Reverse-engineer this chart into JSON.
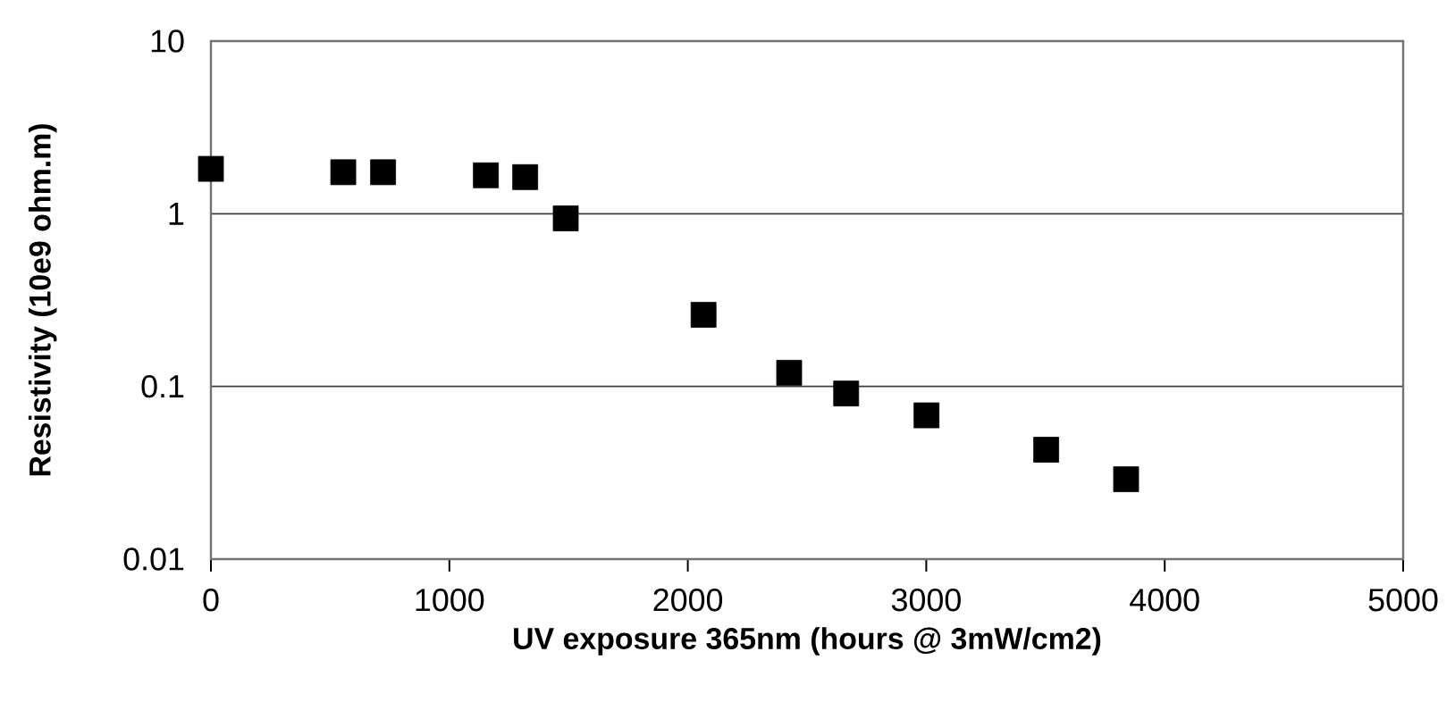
{
  "chart_data": {
    "type": "scatter",
    "xlabel": "UV exposure 365nm (hours @ 3mW/cm2)",
    "ylabel": "Resistivity (10e9 ohm.m)",
    "x": [
      0,
      555,
      722,
      1153,
      1318,
      1488,
      2066,
      2425,
      2664,
      3001,
      3503,
      3838
    ],
    "series": [
      {
        "color": "#000000",
        "values": [
          1.82,
          1.74,
          1.74,
          1.67,
          1.63,
          0.94,
          0.26,
          0.12,
          0.091,
          0.068,
          0.043,
          0.029
        ]
      }
    ],
    "xlim": [
      0,
      5000
    ],
    "xticks": [
      0,
      1000,
      2000,
      3000,
      4000,
      5000
    ],
    "ylim": [
      0.01,
      10
    ],
    "yticks": [
      0.01,
      0.1,
      1,
      10
    ],
    "log": "y",
    "grid": "y",
    "marker": "square"
  }
}
